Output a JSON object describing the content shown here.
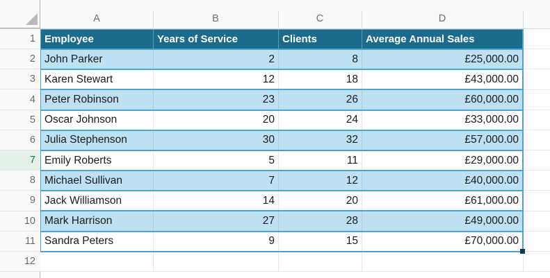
{
  "sheet": {
    "column_headers": [
      "A",
      "B",
      "C",
      "D"
    ],
    "row_numbers": [
      "1",
      "2",
      "3",
      "4",
      "5",
      "6",
      "7",
      "8",
      "9",
      "10",
      "11",
      "12"
    ],
    "selected_row": "7",
    "icons": {
      "select_all": "select-all-triangle-icon",
      "fill_handle": "fill-handle"
    }
  },
  "table": {
    "headers": [
      "Employee",
      "Years of Service",
      "Clients",
      "Average Annual Sales"
    ],
    "rows": [
      [
        "John Parker",
        "2",
        "8",
        "£25,000.00"
      ],
      [
        "Karen Stewart",
        "12",
        "18",
        "£43,000.00"
      ],
      [
        "Peter Robinson",
        "23",
        "26",
        "£60,000.00"
      ],
      [
        "Oscar Johnson",
        "20",
        "24",
        "£33,000.00"
      ],
      [
        "Julia Stephenson",
        "30",
        "32",
        "£57,000.00"
      ],
      [
        "Emily Roberts",
        "5",
        "11",
        "£29,000.00"
      ],
      [
        "Michael Sullivan",
        "7",
        "12",
        "£40,000.00"
      ],
      [
        "Jack Williamson",
        "14",
        "20",
        "£61,000.00"
      ],
      [
        "Mark Harrison",
        "27",
        "28",
        "£49,000.00"
      ],
      [
        "Sandra Peters",
        "9",
        "15",
        "£70,000.00"
      ]
    ]
  },
  "colors": {
    "header_fill": "#1A6B8C",
    "band_fill": "#BDE0F3",
    "table_border": "#4EA3CE",
    "selected_text": "#107C41",
    "selected_bg": "#E4F1E9",
    "selected_border": "#0F7B40",
    "fill_handle": "#12384F",
    "chrome_bg": "#F9F9F9"
  }
}
